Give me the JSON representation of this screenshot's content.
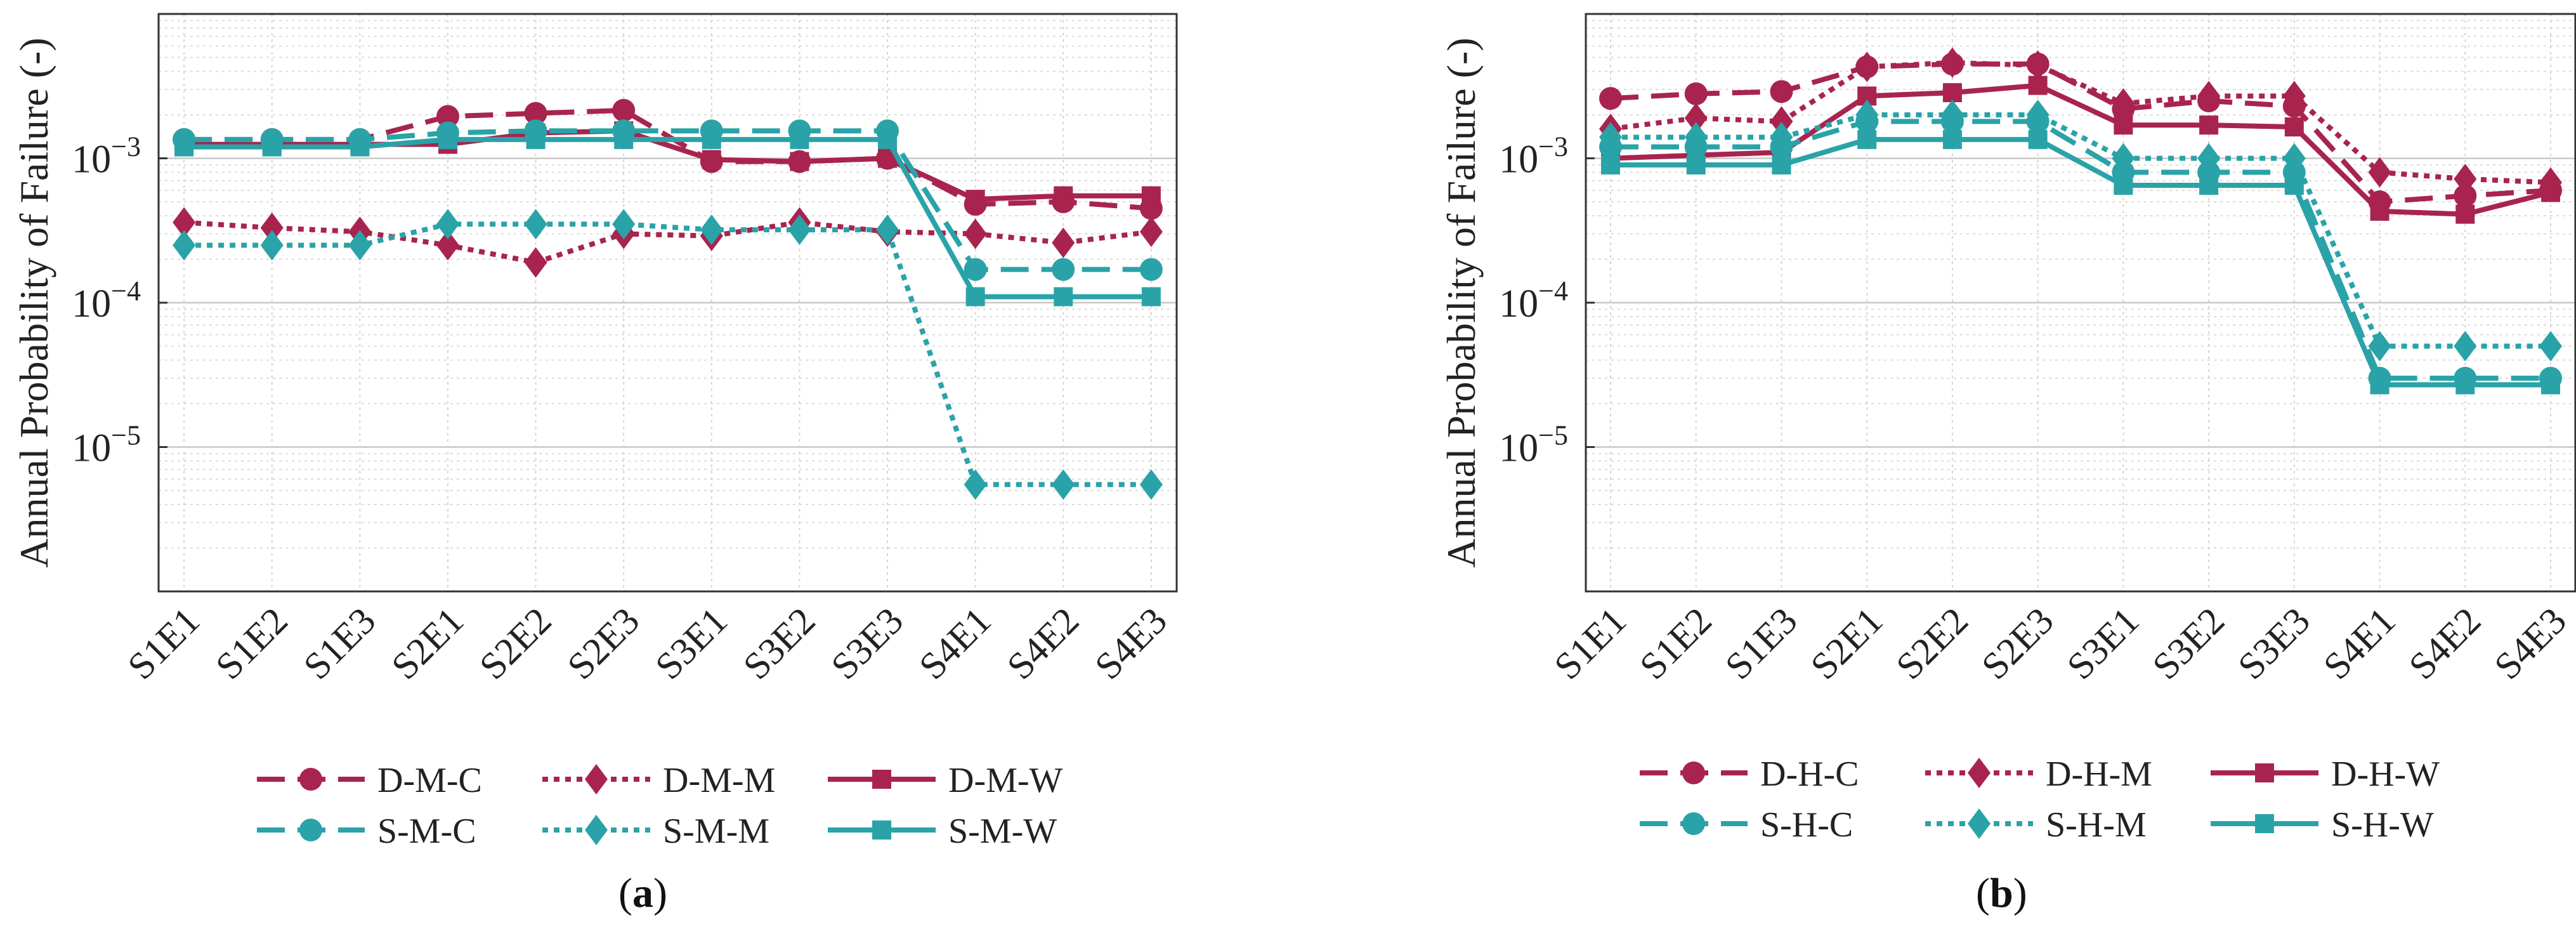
{
  "series_style": {
    "D": {
      "color": "#A8244F"
    },
    "S": {
      "color": "#2AA3A8"
    }
  },
  "chart_data": [
    {
      "type": "line",
      "panel_label": "a",
      "ylabel": "Annual Probability of Failure (-)",
      "yscale": "log",
      "ylim": [
        1e-06,
        0.01
      ],
      "yticks": [
        {
          "value": 1e-05,
          "base": "10",
          "exp": "−5"
        },
        {
          "value": 0.0001,
          "base": "10",
          "exp": "−4"
        },
        {
          "value": 0.001,
          "base": "10",
          "exp": "−3"
        }
      ],
      "categories": [
        "S1E1",
        "S1E2",
        "S1E3",
        "S2E1",
        "S2E2",
        "S2E3",
        "S3E1",
        "S3E2",
        "S3E3",
        "S4E1",
        "S4E2",
        "S4E3"
      ],
      "series": [
        {
          "name": "D-M-C",
          "group": "D",
          "dash": "dashed",
          "marker": "circle",
          "values": [
            0.00135,
            0.00135,
            0.00135,
            0.00195,
            0.00205,
            0.00215,
            0.00095,
            0.00095,
            0.001,
            0.00048,
            0.0005,
            0.00045
          ]
        },
        {
          "name": "D-M-M",
          "group": "D",
          "dash": "dotted",
          "marker": "diamond",
          "values": [
            0.00036,
            0.00033,
            0.00031,
            0.00025,
            0.00019,
            0.0003,
            0.00029,
            0.00036,
            0.00031,
            0.0003,
            0.00026,
            0.00031
          ]
        },
        {
          "name": "D-M-W",
          "group": "D",
          "dash": "solid",
          "marker": "square",
          "values": [
            0.00125,
            0.00125,
            0.00125,
            0.00125,
            0.0015,
            0.00155,
            0.00098,
            0.00095,
            0.001,
            0.00052,
            0.00055,
            0.00055
          ]
        },
        {
          "name": "S-M-C",
          "group": "S",
          "dash": "dashed",
          "marker": "circle",
          "values": [
            0.00135,
            0.00135,
            0.00135,
            0.0015,
            0.00155,
            0.00155,
            0.00155,
            0.00155,
            0.00155,
            0.00017,
            0.00017,
            0.00017
          ]
        },
        {
          "name": "S-M-M",
          "group": "S",
          "dash": "dotted",
          "marker": "diamond",
          "values": [
            0.00025,
            0.00025,
            0.00025,
            0.00035,
            0.00035,
            0.00035,
            0.00032,
            0.00032,
            0.00032,
            5.5e-06,
            5.5e-06,
            5.5e-06
          ]
        },
        {
          "name": "S-M-W",
          "group": "S",
          "dash": "solid",
          "marker": "square",
          "values": [
            0.0012,
            0.0012,
            0.0012,
            0.00135,
            0.00135,
            0.00135,
            0.00135,
            0.00135,
            0.00135,
            0.00011,
            0.00011,
            0.00011
          ]
        }
      ]
    },
    {
      "type": "line",
      "panel_label": "b",
      "ylabel": "Annual Probability of Failure (-)",
      "yscale": "log",
      "ylim": [
        1e-06,
        0.01
      ],
      "yticks": [
        {
          "value": 1e-05,
          "base": "10",
          "exp": "−5"
        },
        {
          "value": 0.0001,
          "base": "10",
          "exp": "−4"
        },
        {
          "value": 0.001,
          "base": "10",
          "exp": "−3"
        }
      ],
      "categories": [
        "S1E1",
        "S1E2",
        "S1E3",
        "S2E1",
        "S2E2",
        "S2E3",
        "S3E1",
        "S3E2",
        "S3E3",
        "S4E1",
        "S4E2",
        "S4E3"
      ],
      "series": [
        {
          "name": "D-H-C",
          "group": "D",
          "dash": "dashed",
          "marker": "circle",
          "values": [
            0.0026,
            0.0028,
            0.0029,
            0.0043,
            0.0045,
            0.0045,
            0.0022,
            0.0025,
            0.0023,
            0.0005,
            0.00055,
            0.0006
          ]
        },
        {
          "name": "D-H-M",
          "group": "D",
          "dash": "dotted",
          "marker": "diamond",
          "values": [
            0.0016,
            0.0019,
            0.0018,
            0.0043,
            0.0046,
            0.0044,
            0.0024,
            0.0027,
            0.0027,
            0.0008,
            0.00072,
            0.00068
          ]
        },
        {
          "name": "D-H-W",
          "group": "D",
          "dash": "solid",
          "marker": "square",
          "values": [
            0.001,
            0.00105,
            0.0011,
            0.0027,
            0.00285,
            0.0032,
            0.0017,
            0.0017,
            0.00165,
            0.00043,
            0.00041,
            0.00058
          ]
        },
        {
          "name": "S-H-C",
          "group": "S",
          "dash": "dashed",
          "marker": "circle",
          "values": [
            0.0012,
            0.0012,
            0.0012,
            0.0018,
            0.0018,
            0.0018,
            0.0008,
            0.0008,
            0.0008,
            3e-05,
            3e-05,
            3e-05
          ]
        },
        {
          "name": "S-H-M",
          "group": "S",
          "dash": "dotted",
          "marker": "diamond",
          "values": [
            0.0014,
            0.0014,
            0.0014,
            0.002,
            0.002,
            0.002,
            0.001,
            0.001,
            0.001,
            5e-05,
            5e-05,
            5e-05
          ]
        },
        {
          "name": "S-H-W",
          "group": "S",
          "dash": "solid",
          "marker": "square",
          "values": [
            0.0009,
            0.0009,
            0.0009,
            0.00135,
            0.00135,
            0.00135,
            0.00065,
            0.00065,
            0.00065,
            2.7e-05,
            2.7e-05,
            2.7e-05
          ]
        }
      ]
    }
  ]
}
